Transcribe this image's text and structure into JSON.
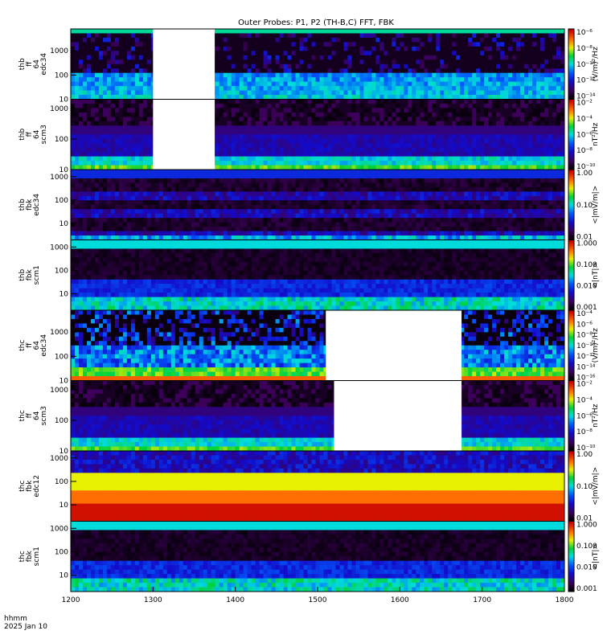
{
  "title": "Outer Probes: P1, P2 (TH-B,C) FFT, FBK",
  "footer": {
    "time_label": "hhmm",
    "date_label": "2025 Jan 10"
  },
  "chart_data": {
    "type": "heatmap",
    "x_ticks": [
      "1200",
      "1300",
      "1400",
      "1500",
      "1600",
      "1700",
      "1800"
    ],
    "xlim": [
      "1200",
      "1800"
    ],
    "panels": [
      {
        "label": [
          "thb",
          "ff",
          "64",
          "edc34"
        ],
        "y_ticks": [
          "10",
          "100",
          "1000"
        ],
        "ylim": [
          10,
          8000
        ],
        "yscale": "log",
        "colorbar": {
          "ticks": [
            "10⁻¹⁴",
            "10⁻¹²",
            "10⁻¹⁰",
            "10⁻⁸",
            "10⁻⁶"
          ],
          "unit": "(V/m)²/Hz"
        },
        "gaps": [
          [
            1300,
            1375
          ]
        ],
        "style": "edc"
      },
      {
        "label": [
          "thb",
          "ff",
          "64",
          "scm3"
        ],
        "y_ticks": [
          "10",
          "100",
          "1000"
        ],
        "ylim": [
          10,
          2000
        ],
        "yscale": "log",
        "colorbar": {
          "ticks": [
            "10⁻¹⁰",
            "10⁻⁸",
            "10⁻⁶",
            "10⁻⁴",
            "10⁻²"
          ],
          "unit": "nT²/Hz"
        },
        "gaps": [
          [
            1300,
            1375
          ]
        ],
        "style": "scm"
      },
      {
        "label": [
          "thb",
          "fbk",
          "edc34"
        ],
        "y_ticks": [
          "10",
          "100",
          "1000"
        ],
        "ylim": [
          2,
          2000
        ],
        "yscale": "log",
        "colorbar": {
          "ticks": [
            "0.01",
            "0.10",
            "1.00"
          ],
          "unit": "<|mV/m|>"
        },
        "gaps": [],
        "style": "fbk_e"
      },
      {
        "label": [
          "thb",
          "fbk",
          "scm1"
        ],
        "y_ticks": [
          "10",
          "100",
          "1000"
        ],
        "ylim": [
          2,
          2000
        ],
        "yscale": "log",
        "colorbar": {
          "ticks": [
            "0.001",
            "0.010",
            "0.100",
            "1.000"
          ],
          "unit": "<|nT|>"
        },
        "gaps": [],
        "style": "fbk_b"
      },
      {
        "label": [
          "thc",
          "ff",
          "64",
          "edc34"
        ],
        "y_ticks": [
          "10",
          "100",
          "1000"
        ],
        "ylim": [
          10,
          8000
        ],
        "yscale": "log",
        "colorbar": {
          "ticks": [
            "10⁻¹⁶",
            "10⁻¹⁴",
            "10⁻¹²",
            "10⁻¹⁰",
            "10⁻⁸",
            "10⁻⁶",
            "10⁻⁴"
          ],
          "unit": "(V/m)²/Hz"
        },
        "gaps": [
          [
            1510,
            1675
          ]
        ],
        "style": "edc2"
      },
      {
        "label": [
          "thc",
          "ff",
          "64",
          "scm3"
        ],
        "y_ticks": [
          "10",
          "100",
          "1000"
        ],
        "ylim": [
          10,
          2000
        ],
        "yscale": "log",
        "colorbar": {
          "ticks": [
            "10⁻¹⁰",
            "10⁻⁸",
            "10⁻⁶",
            "10⁻⁴",
            "10⁻²"
          ],
          "unit": "nT²/Hz"
        },
        "gaps": [
          [
            1520,
            1675
          ]
        ],
        "style": "scm"
      },
      {
        "label": [
          "thc",
          "fbk",
          "edc12"
        ],
        "y_ticks": [
          "10",
          "100",
          "1000"
        ],
        "ylim": [
          2,
          2000
        ],
        "yscale": "log",
        "colorbar": {
          "ticks": [
            "0.01",
            "0.10",
            "1.00"
          ],
          "unit": "<|mV/m|>"
        },
        "gaps": [],
        "style": "fbk_e2"
      },
      {
        "label": [
          "thc",
          "fbk",
          "scm1"
        ],
        "y_ticks": [
          "10",
          "100",
          "1000"
        ],
        "ylim": [
          2,
          2000
        ],
        "yscale": "log",
        "colorbar": {
          "ticks": [
            "0.001",
            "0.010",
            "0.100",
            "1.000"
          ],
          "unit": "<|nT|>"
        },
        "gaps": [],
        "style": "fbk_b"
      }
    ]
  }
}
